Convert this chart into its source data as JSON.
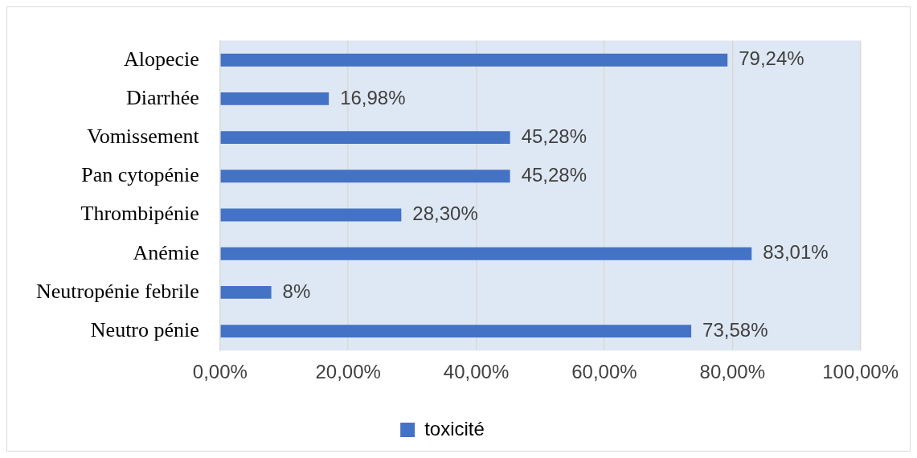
{
  "chart_data": {
    "type": "bar",
    "orientation": "horizontal",
    "categories": [
      "Alopecie",
      "Diarrhée",
      "Vomissement",
      "Pan cytopénie",
      "Thrombipénie",
      "Anémie",
      "Neutropénie febrile",
      "Neutro pénie"
    ],
    "series": [
      {
        "name": "toxicité",
        "color": "#4472c4",
        "values": [
          79.24,
          16.98,
          45.28,
          45.28,
          28.3,
          83.01,
          8,
          73.58
        ],
        "value_labels": [
          "79,24%",
          "16,98%",
          "45,28%",
          "45,28%",
          "28,30%",
          "83,01%",
          "8%",
          "73,58%"
        ]
      }
    ],
    "xlim": [
      0,
      100
    ],
    "xticks": [
      {
        "value": 0,
        "label": "0,00%"
      },
      {
        "value": 20,
        "label": "20,00%"
      },
      {
        "value": 40,
        "label": "40,00%"
      },
      {
        "value": 60,
        "label": "60,00%"
      },
      {
        "value": 80,
        "label": "80,00%"
      },
      {
        "value": 100,
        "label": "100,00%"
      }
    ],
    "grid": "x",
    "legend": "bottom"
  }
}
